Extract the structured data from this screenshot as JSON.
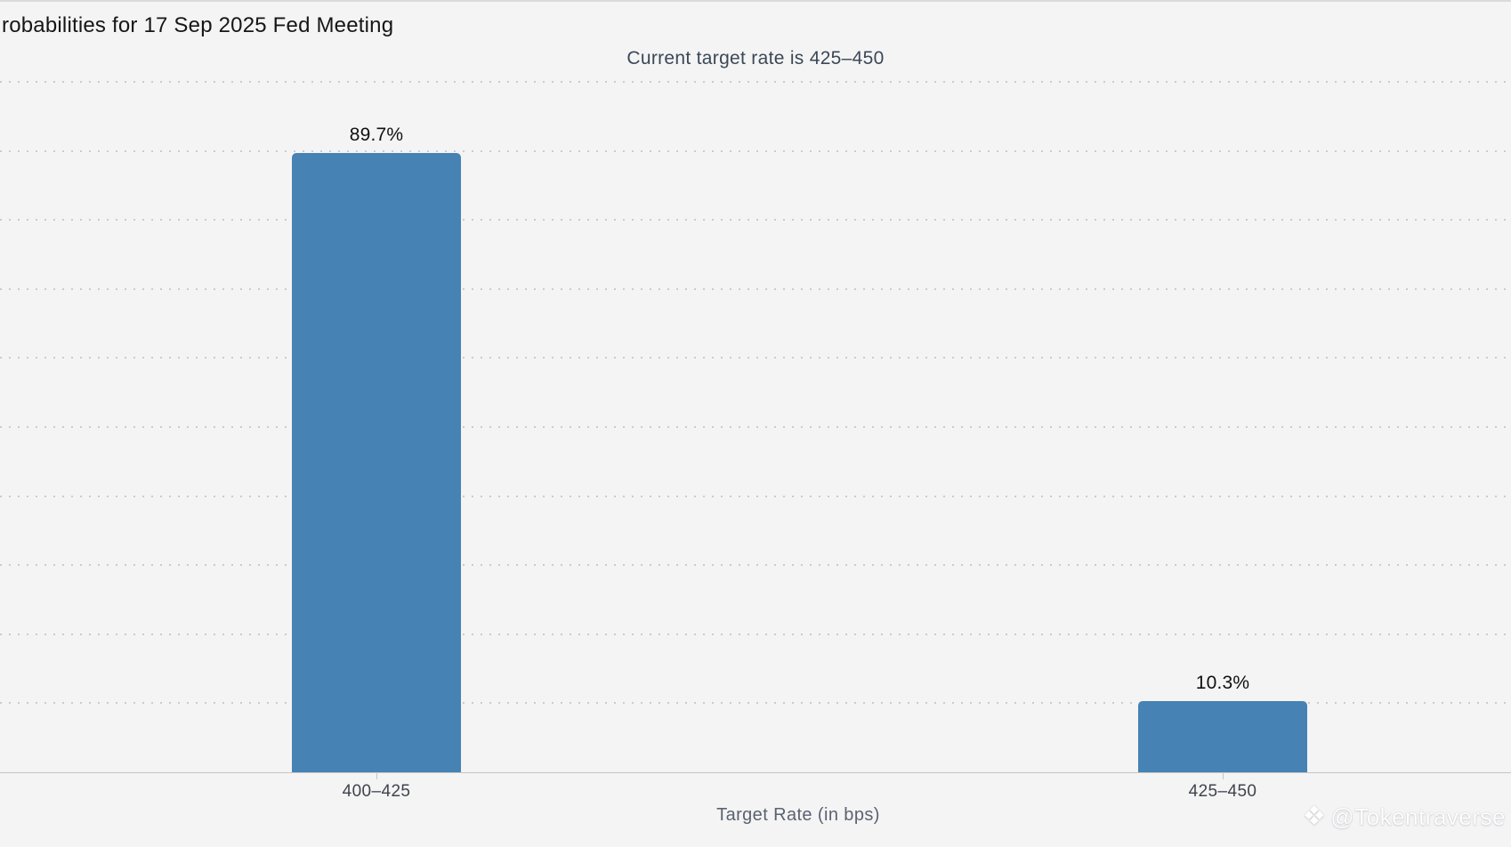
{
  "page": {
    "background_color": "#f4f4f5",
    "top_edge_line_color": "#dadadc"
  },
  "chart_data": {
    "type": "bar",
    "title": "robabilities for 17 Sep 2025 Fed Meeting",
    "subtitle": "Current target rate is 425–450",
    "xlabel": "Target Rate (in bps)",
    "ylabel": "",
    "categories": [
      "400–425",
      "425–450"
    ],
    "values": [
      89.7,
      10.3
    ],
    "value_labels": [
      "89.7%",
      "10.3%"
    ],
    "bar_color": "#4682b4",
    "ylim": [
      0,
      112
    ],
    "grid": {
      "style": "dotted",
      "orientation": "horizontal",
      "interval_pct": 10,
      "color": "#cbcbce"
    },
    "legend": "none"
  },
  "watermark": {
    "logo_glyph": "❖",
    "text": "@Tokentraverse"
  }
}
